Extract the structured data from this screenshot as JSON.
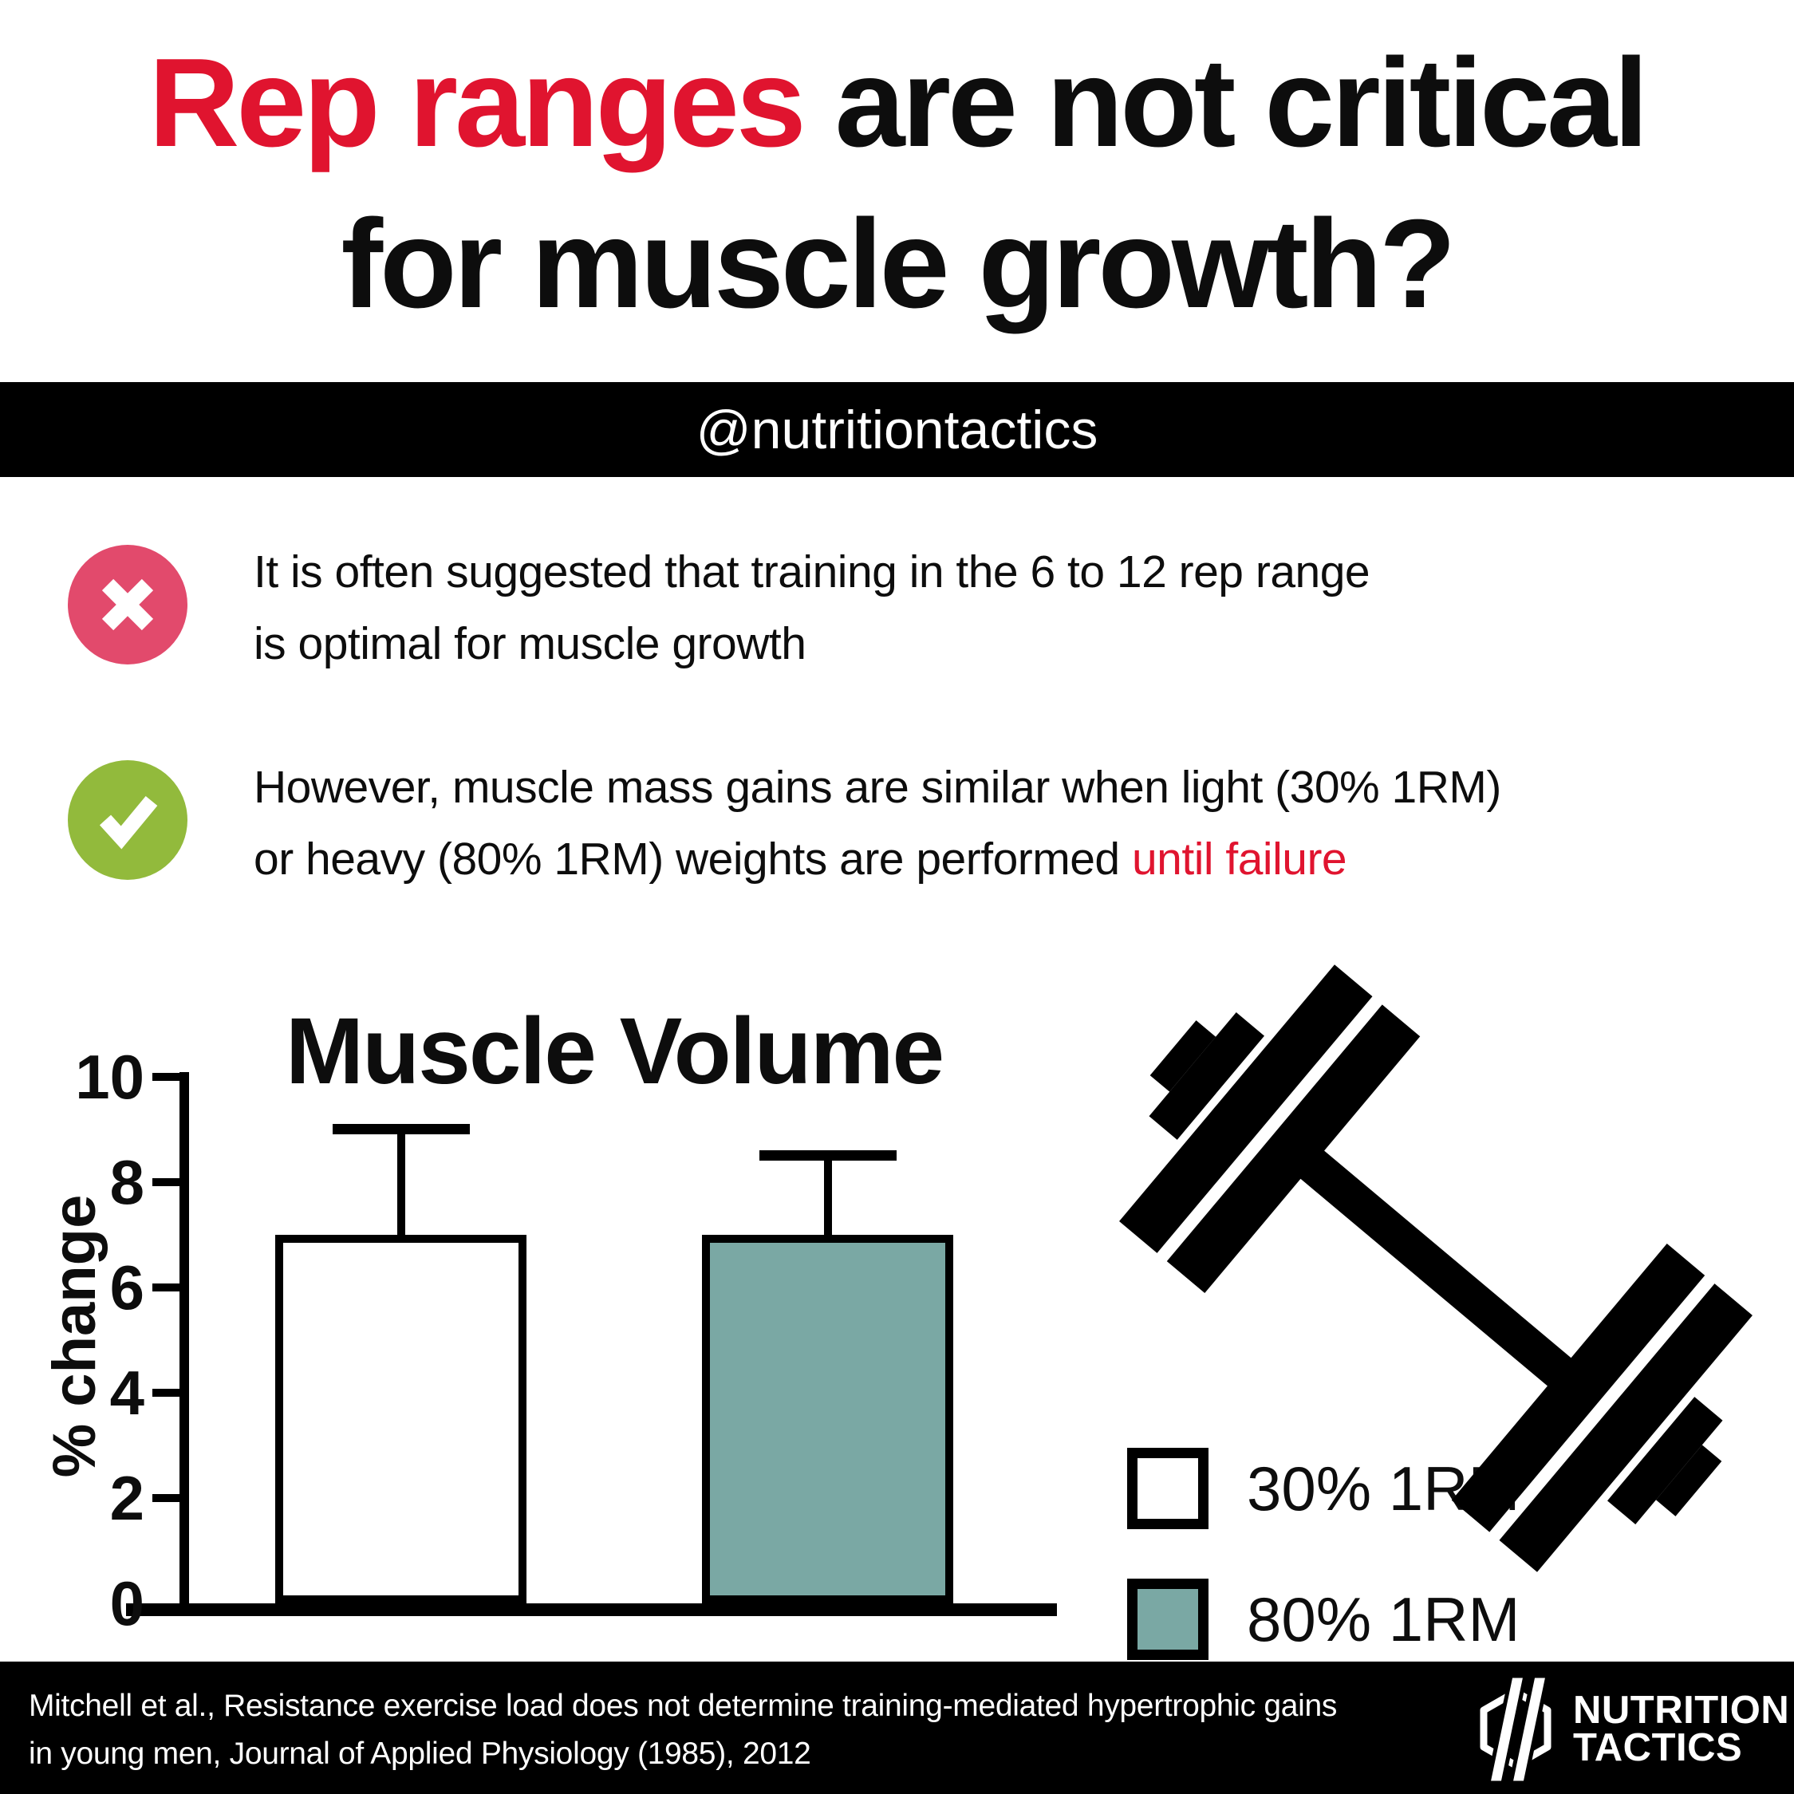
{
  "title": {
    "line1_red": "Rep ranges",
    "line1_black": "are not critical",
    "line2": "for muscle growth?"
  },
  "handle_bar": {
    "text": "@nutritiontactics"
  },
  "points": [
    {
      "icon": "cross",
      "lines": [
        "It is often suggested that training in the 6 to 12 rep range",
        "is optimal for muscle growth"
      ]
    },
    {
      "icon": "check",
      "lines": [
        "However, muscle mass gains are similar when light (30% 1RM)"
      ],
      "line2_prefix": "or heavy (80% 1RM) weights are performed",
      "line2_highlight": "until failure"
    }
  ],
  "chart_data": {
    "type": "bar",
    "title": "Muscle Volume",
    "xlabel": "",
    "ylabel": "% change",
    "ylim": [
      0,
      10
    ],
    "yticks": [
      0,
      2,
      4,
      6,
      8,
      10
    ],
    "grid": false,
    "categories": [
      "30% 1RM",
      "80% 1RM"
    ],
    "series": [
      {
        "name": "30% 1RM",
        "value": 7,
        "error": 2,
        "color": "#ffffff"
      },
      {
        "name": "80% 1RM",
        "value": 7,
        "error": 1.5,
        "color": "#7aa8a4"
      }
    ],
    "legend": [
      {
        "label": "30% 1RM",
        "color": "#ffffff"
      },
      {
        "label": "80% 1RM",
        "color": "#7aa8a4"
      }
    ],
    "legend_position": "right-bottom"
  },
  "footer": {
    "citation_lines": [
      "Mitchell et al., Resistance exercise load does not determine training-mediated hypertrophic gains",
      "in young men, Journal of Applied Physiology (1985), 2012"
    ],
    "logo_line1": "NUTRITION",
    "logo_line2": "TACTICS"
  },
  "colors": {
    "accent_red": "#e0142f",
    "cross_pink": "#e24a6c",
    "check_green": "#92ba3c",
    "bar_teal": "#7aa8a4",
    "black": "#000000",
    "white": "#ffffff"
  }
}
